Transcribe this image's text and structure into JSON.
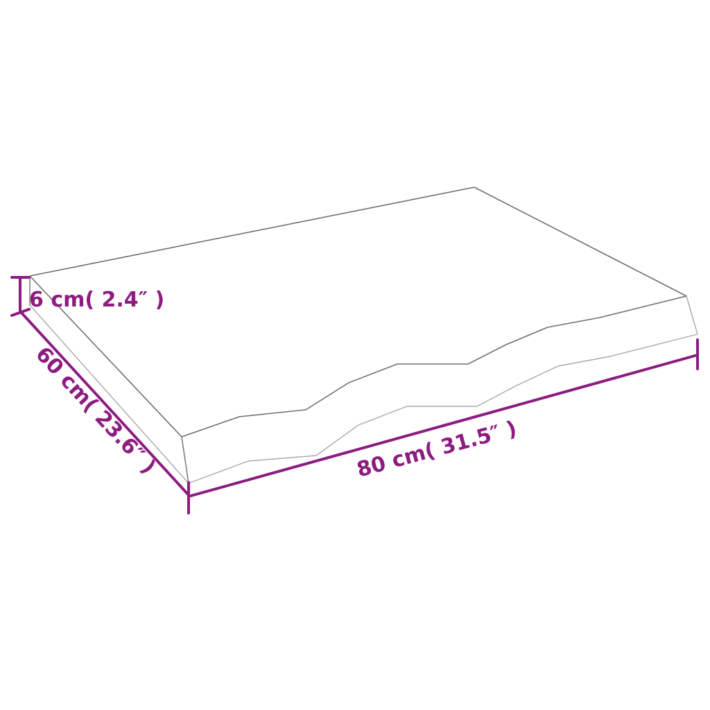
{
  "colors": {
    "dimension": "#8c1c80",
    "outline": "#6e6e6e",
    "outline_light": "#a8a8a8"
  },
  "dimensions": {
    "height": "6 cm( 2.4″ )",
    "depth": "60 cm( 23.6″ )",
    "width": "80 cm( 31.5″ )"
  }
}
